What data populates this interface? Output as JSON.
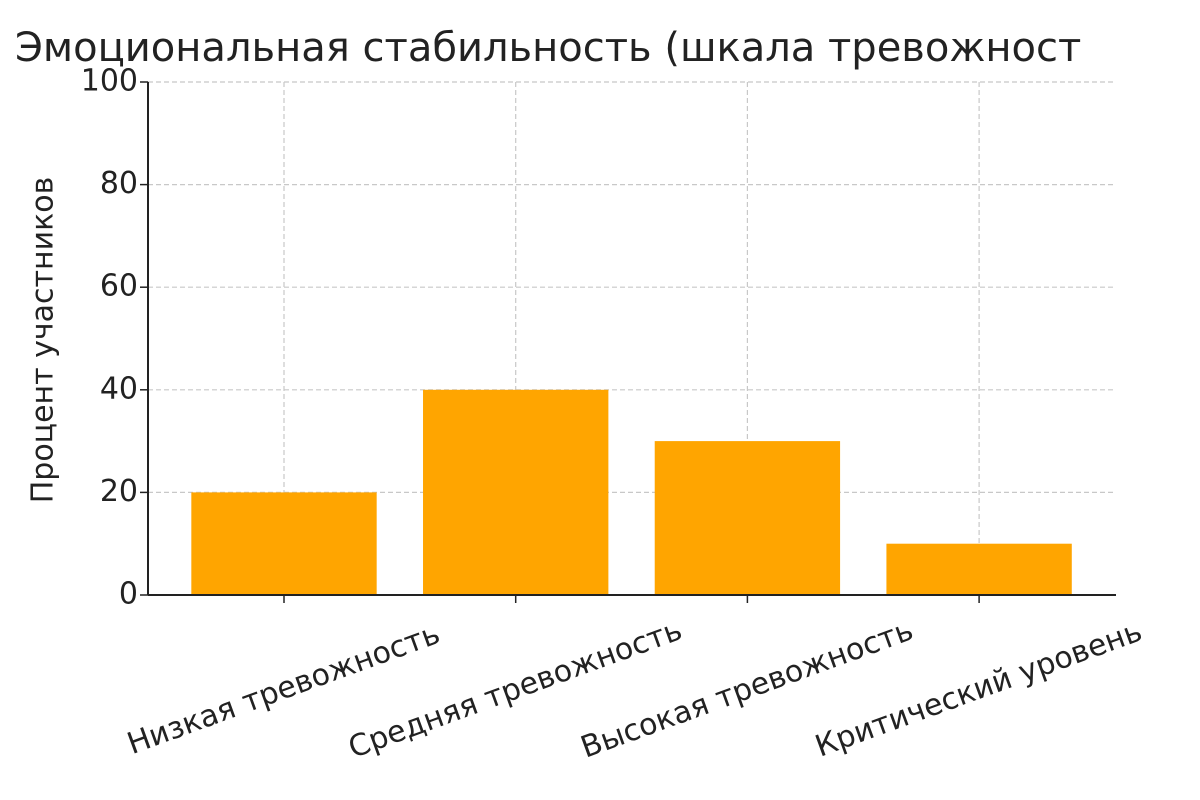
{
  "chart_data": {
    "type": "bar",
    "title": "Эмоциональная стабильность (шкала тревожност",
    "y_label": "Процент участников",
    "categories": [
      "Низкая тревожность",
      "Средняя тревожность",
      "Высокая тревожность",
      "Критический уровень"
    ],
    "values": [
      20,
      40,
      30,
      10
    ],
    "color": "#ffa500",
    "ylim": [
      0,
      100
    ],
    "yticks": [
      0,
      20,
      40,
      60,
      80,
      100
    ],
    "grid": true
  }
}
